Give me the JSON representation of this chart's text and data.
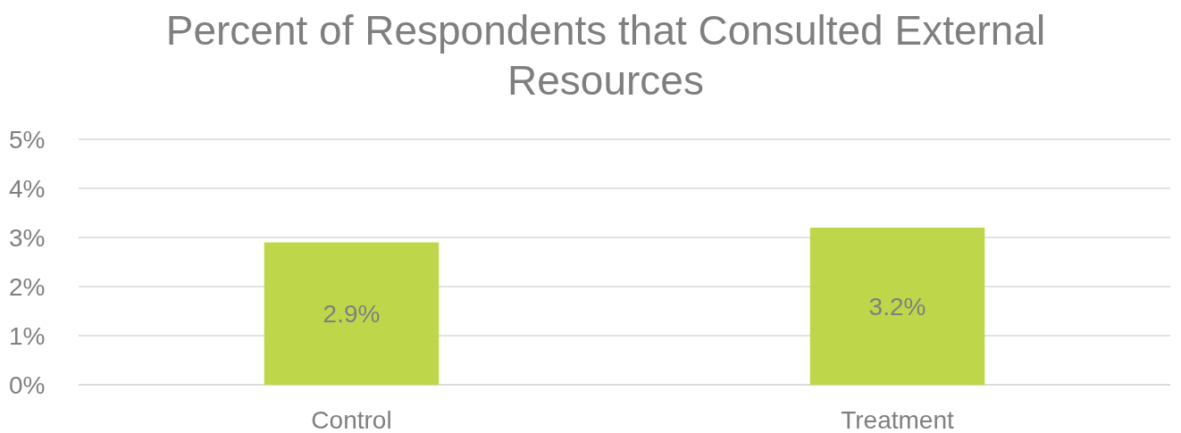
{
  "chart_data": {
    "type": "bar",
    "title": "Percent of Respondents that Consulted External Resources",
    "categories": [
      "Control",
      "Treatment"
    ],
    "values": [
      2.9,
      3.2
    ],
    "color": "#bed74a",
    "value_labels": [
      "2.9%",
      "3.2%"
    ],
    "ylim": [
      0,
      5
    ],
    "yticks": [
      {
        "value": 0,
        "label": "0%"
      },
      {
        "value": 1,
        "label": "1%"
      },
      {
        "value": 2,
        "label": "2%"
      },
      {
        "value": 3,
        "label": "3%"
      },
      {
        "value": 4,
        "label": "4%"
      },
      {
        "value": 5,
        "label": "5%"
      }
    ],
    "grid": true
  }
}
